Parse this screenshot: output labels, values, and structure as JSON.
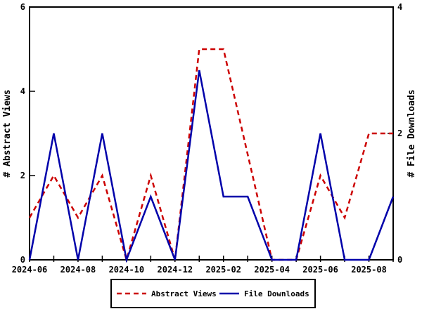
{
  "chart_data": {
    "type": "line",
    "x": [
      "2024-06",
      "2024-07",
      "2024-08",
      "2024-09",
      "2024-10",
      "2024-11",
      "2024-12",
      "2025-01",
      "2025-02",
      "2025-03",
      "2025-04",
      "2025-05",
      "2025-06",
      "2025-07",
      "2025-08",
      "2025-09"
    ],
    "series": [
      {
        "name": "Abstract Views",
        "axis": "left",
        "color": "#cc0000",
        "line_style": "dashed",
        "values": [
          1,
          2,
          1,
          2,
          0,
          2,
          0,
          5,
          5,
          2.5,
          0,
          0,
          2,
          1,
          3,
          3
        ]
      },
      {
        "name": "File Downloads",
        "axis": "right",
        "color": "#0000aa",
        "line_style": "solid",
        "values": [
          0,
          2,
          0,
          2,
          0,
          1,
          0,
          3,
          1,
          1,
          0,
          0,
          2,
          0,
          0,
          1
        ]
      }
    ],
    "left_axis": {
      "label": "# Abstract Views",
      "range": [
        0,
        6
      ],
      "ticks": [
        0,
        2,
        4,
        6
      ]
    },
    "right_axis": {
      "label": "# File Downloads",
      "range": [
        0,
        4
      ],
      "ticks": [
        0,
        2,
        4
      ]
    },
    "x_axis": {
      "major_tick_labels": [
        "2024-06",
        "2024-08",
        "2024-10",
        "2024-12",
        "2025-02",
        "2025-04",
        "2025-06",
        "2025-08"
      ],
      "minor_ticks": "monthly"
    },
    "grid": false,
    "title": "",
    "legend": {
      "position": "bottom-center",
      "entries": [
        {
          "label": "Abstract Views",
          "color": "#cc0000",
          "dash": true
        },
        {
          "label": "File Downloads",
          "color": "#0000aa",
          "dash": false
        }
      ]
    },
    "frame_color": "#000000",
    "background_color": "#ffffff"
  }
}
